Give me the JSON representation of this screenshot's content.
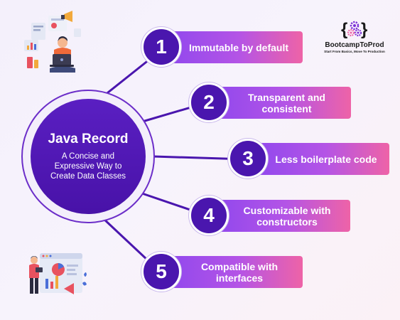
{
  "hub": {
    "title": "Java Record",
    "subtitle": "A Concise and Expressive Way to Create Data Classes"
  },
  "items": [
    {
      "number": "1",
      "text": "Immutable by default"
    },
    {
      "number": "2",
      "text": "Transparent and consistent"
    },
    {
      "number": "3",
      "text": "Less boilerplate code"
    },
    {
      "number": "4",
      "text": "Customizable with constructors"
    },
    {
      "number": "5",
      "text": "Compatible with interfaces"
    }
  ],
  "logo": {
    "title": "BootcampToProd",
    "tagline": "Start From Basics, Move To Production"
  },
  "colors": {
    "hub_purple": "#4812a8",
    "pill_start": "#8d47ee",
    "pill_end": "#ee63a7",
    "number_circle": "#4a16ae",
    "connector": "#4a16ae"
  },
  "icons": {
    "top_left": "person-with-laptop-illustration",
    "bottom_left": "presentation-dashboard-illustration",
    "logo": "gear-with-braces-icon"
  }
}
